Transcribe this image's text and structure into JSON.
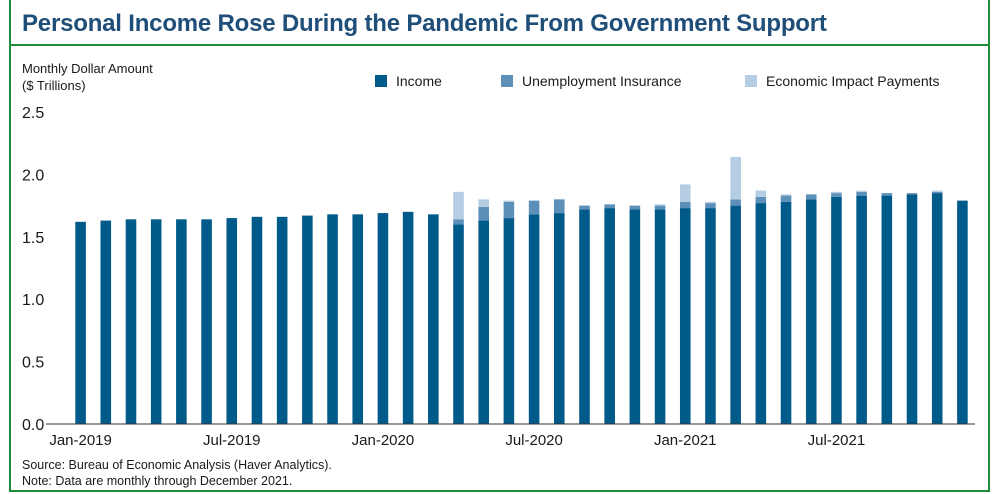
{
  "header": {
    "title": "Personal Income Rose During the Pandemic From Government Support"
  },
  "y_axis_label": {
    "line1": "Monthly Dollar Amount",
    "line2": "($ Trillions)"
  },
  "footer": {
    "source": "Source: Bureau of Economic Analysis (Haver Analytics).",
    "note": "Note: Data are monthly through December 2021."
  },
  "colors": {
    "income": "#005a8a",
    "unemployment": "#5c90b8",
    "eip": "#b5cde3",
    "accent": "#1e8a3c",
    "title": "#1f4e79"
  },
  "chart_data": {
    "type": "bar",
    "stacked": true,
    "title": "Personal Income Rose During the Pandemic From Government Support",
    "ylabel": "Monthly Dollar Amount ($ Trillions)",
    "xlabel": "",
    "ylim": [
      0,
      2.5
    ],
    "yticks": [
      "0.0",
      "0.5",
      "1.0",
      "1.5",
      "2.0",
      "2.5"
    ],
    "grid": false,
    "legend_position": "top",
    "x_tick_labels": [
      {
        "index": 0,
        "label": "Jan-2019"
      },
      {
        "index": 6,
        "label": "Jul-2019"
      },
      {
        "index": 12,
        "label": "Jan-2020"
      },
      {
        "index": 18,
        "label": "Jul-2020"
      },
      {
        "index": 24,
        "label": "Jan-2021"
      },
      {
        "index": 30,
        "label": "Jul-2021"
      }
    ],
    "categories": [
      "2019-01",
      "2019-02",
      "2019-03",
      "2019-04",
      "2019-05",
      "2019-06",
      "2019-07",
      "2019-08",
      "2019-09",
      "2019-10",
      "2019-11",
      "2019-12",
      "2020-01",
      "2020-02",
      "2020-03",
      "2020-04",
      "2020-05",
      "2020-06",
      "2020-07",
      "2020-08",
      "2020-09",
      "2020-10",
      "2020-11",
      "2020-12",
      "2021-01",
      "2021-02",
      "2021-03",
      "2021-04",
      "2021-05",
      "2021-06",
      "2021-07",
      "2021-08",
      "2021-09",
      "2021-10",
      "2021-11",
      "2021-12"
    ],
    "series": [
      {
        "name": "Income",
        "values": [
          1.62,
          1.63,
          1.64,
          1.64,
          1.64,
          1.64,
          1.65,
          1.66,
          1.66,
          1.67,
          1.68,
          1.68,
          1.69,
          1.7,
          1.68,
          1.6,
          1.63,
          1.65,
          1.68,
          1.69,
          1.72,
          1.73,
          1.72,
          1.72,
          1.73,
          1.73,
          1.75,
          1.77,
          1.78,
          1.8,
          1.82,
          1.83,
          1.83,
          1.84,
          1.85,
          1.79
        ]
      },
      {
        "name": "Unemployment Insurance",
        "values": [
          0,
          0,
          0,
          0,
          0,
          0,
          0,
          0,
          0,
          0,
          0,
          0,
          0,
          0,
          0,
          0.04,
          0.11,
          0.13,
          0.11,
          0.11,
          0.03,
          0.03,
          0.03,
          0.03,
          0.05,
          0.04,
          0.05,
          0.05,
          0.05,
          0.04,
          0.03,
          0.03,
          0.02,
          0.01,
          0.01,
          0
        ]
      },
      {
        "name": "Economic Impact Payments",
        "values": [
          0,
          0,
          0,
          0,
          0,
          0,
          0,
          0,
          0,
          0,
          0,
          0,
          0,
          0,
          0,
          0.22,
          0.06,
          0.01,
          0,
          0,
          0,
          0,
          0,
          0.01,
          0.14,
          0.01,
          0.34,
          0.05,
          0.01,
          0,
          0.01,
          0.01,
          0,
          0,
          0.01,
          0
        ]
      }
    ]
  }
}
